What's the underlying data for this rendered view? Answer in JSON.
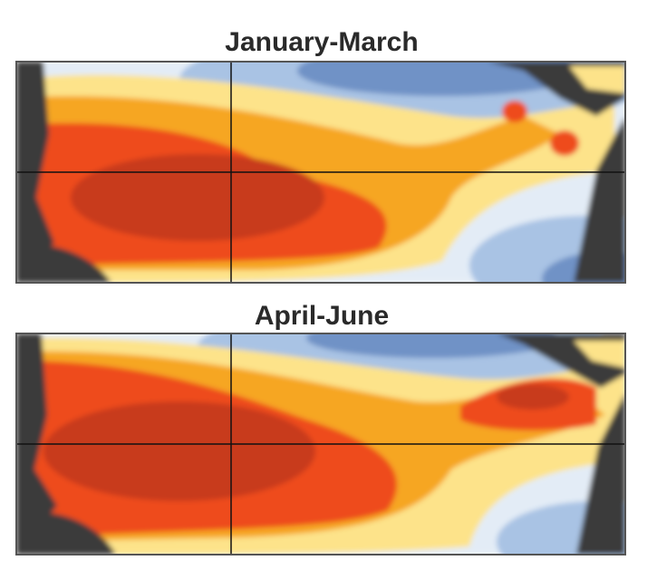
{
  "panels": [
    {
      "title": "January-March"
    },
    {
      "title": "April-June"
    }
  ]
}
